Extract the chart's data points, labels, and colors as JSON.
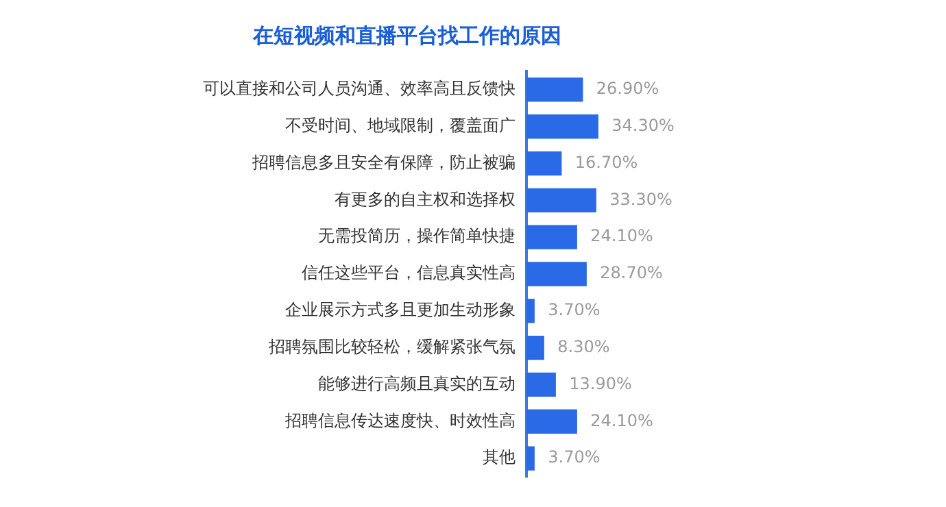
{
  "chart_data": {
    "type": "bar",
    "orientation": "horizontal",
    "title": "在短视频和直播平台找工作的原因",
    "categories": [
      "可以直接和公司人员沟通、效率高且反馈快",
      "不受时间、地域限制，覆盖面广",
      "招聘信息多且安全有保障，防止被骗",
      "有更多的自主权和选择权",
      "无需投简历，操作简单快捷",
      "信任这些平台，信息真实性高",
      "企业展示方式多且更加生动形象",
      "招聘氛围比较轻松，缓解紧张气氛",
      "能够进行高频且真实的互动",
      "招聘信息传达速度快、时效性高",
      "其他"
    ],
    "values": [
      26.9,
      34.3,
      16.7,
      33.3,
      24.1,
      28.7,
      3.7,
      8.3,
      13.9,
      24.1,
      3.7
    ],
    "value_labels": [
      "26.90%",
      "34.30%",
      "16.70%",
      "33.30%",
      "24.10%",
      "28.70%",
      "3.70%",
      "8.30%",
      "13.90%",
      "24.10%",
      "3.70%"
    ],
    "color": "#2a6ae6",
    "tick_labels": "y"
  }
}
